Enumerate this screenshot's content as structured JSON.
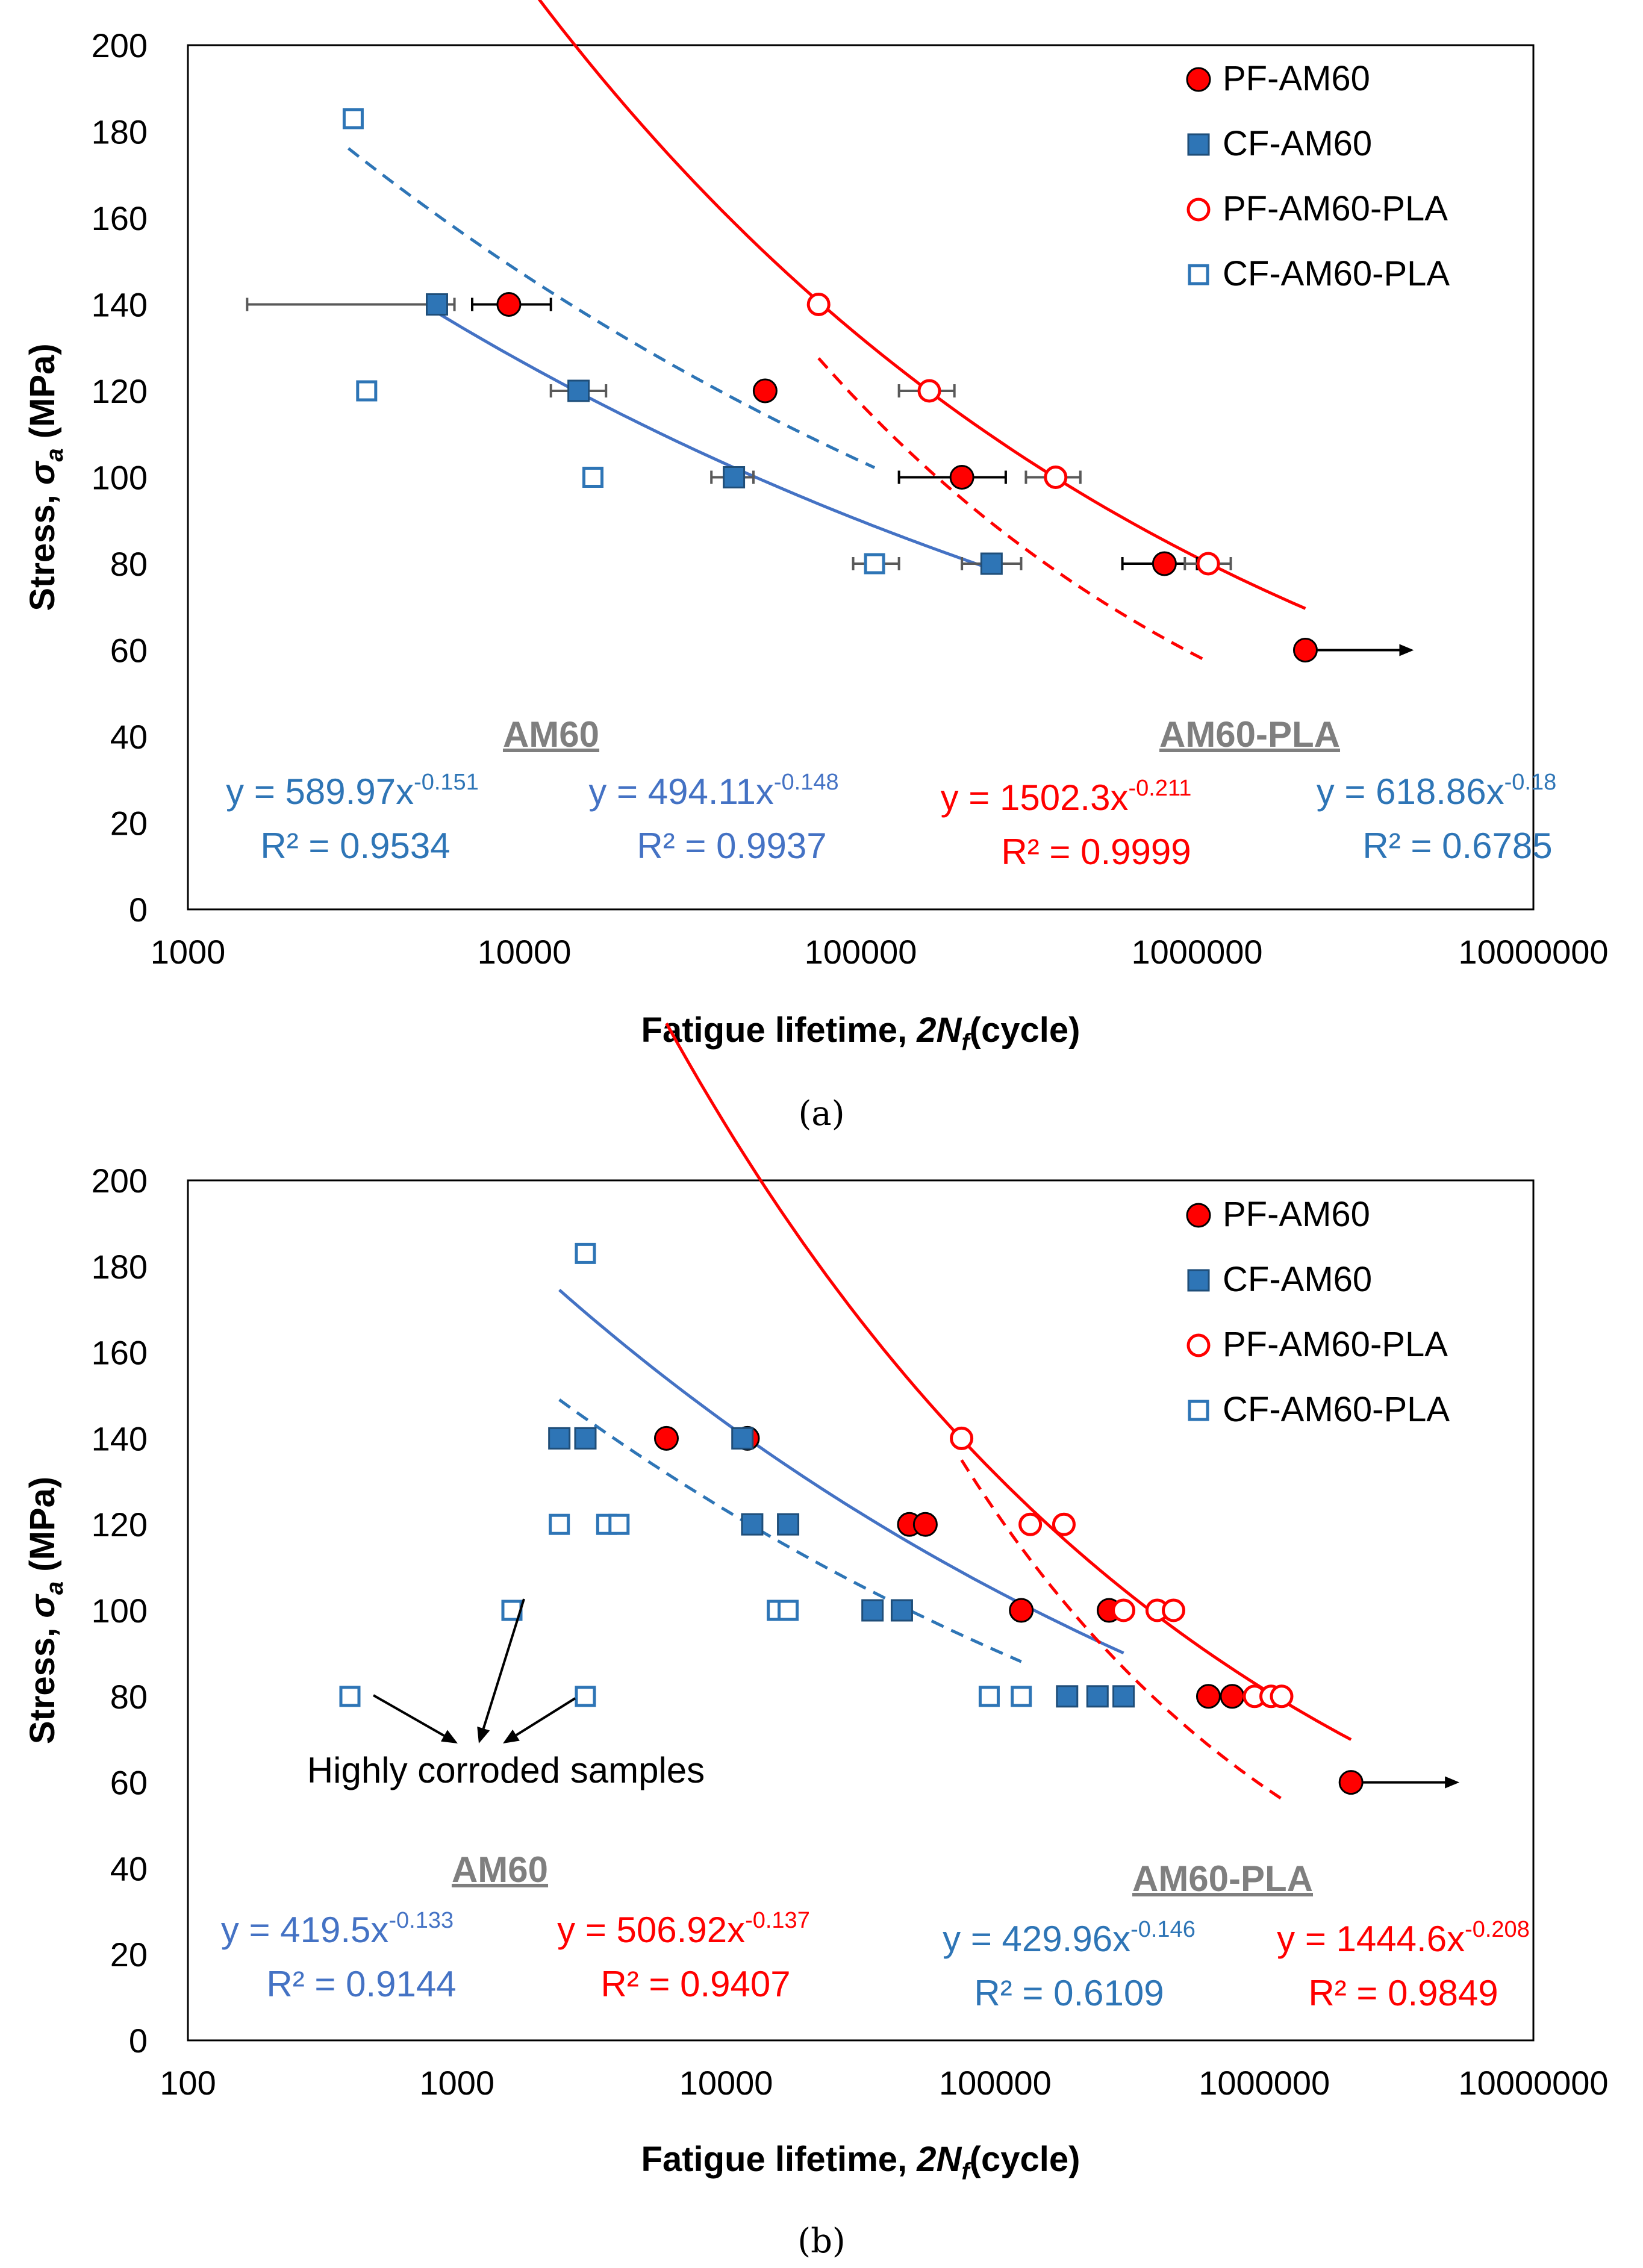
{
  "caption_a": "(a)",
  "caption_b": "(b)",
  "chart_data": [
    {
      "id": "a",
      "type": "scatter",
      "xscale": "log",
      "xlim": [
        1000,
        10000000
      ],
      "ylim": [
        0,
        200
      ],
      "xticks": [
        "1000",
        "10000",
        "100000",
        "1000000",
        "10000000"
      ],
      "yticks": [
        "0",
        "20",
        "40",
        "60",
        "80",
        "100",
        "120",
        "140",
        "160",
        "180",
        "200"
      ],
      "xlabel_main": "Fatigue lifetime, ",
      "xlabel_italic": "2N",
      "xlabel_sub": "f",
      "xlabel_unit": "(cycle)",
      "ylabel_main": "Stress, ",
      "ylabel_italic": "σ",
      "ylabel_sub": "a",
      "ylabel_unit": " (MPa)",
      "legend_position": "top-right",
      "series": [
        {
          "name": "PF-AM60",
          "marker": "circle-filled",
          "color": "#ff0000",
          "points": [
            [
              9000,
              140
            ],
            [
              52000,
              120
            ],
            [
              200000,
              100
            ],
            [
              800000,
              80
            ],
            [
              2100000,
              60
            ]
          ],
          "xerr": [
            [
              7000,
              12000
            ],
            null,
            [
              130000,
              270000
            ],
            [
              600000,
              1000000
            ],
            null
          ],
          "runout": [
            false,
            false,
            false,
            false,
            true
          ]
        },
        {
          "name": "CF-AM60",
          "marker": "square-filled",
          "color": "#2e75b6",
          "points": [
            [
              5500,
              140
            ],
            [
              14500,
              120
            ],
            [
              42000,
              100
            ],
            [
              245000,
              80
            ]
          ],
          "xerr": [
            [
              1500,
              6200
            ],
            [
              12000,
              17500
            ],
            [
              36000,
              48000
            ],
            [
              200000,
              300000
            ]
          ],
          "runout": [
            false,
            false,
            false,
            false
          ]
        },
        {
          "name": "PF-AM60-PLA",
          "marker": "circle-open",
          "color": "#ff0000",
          "points": [
            [
              75000,
              140
            ],
            [
              160000,
              120
            ],
            [
              380000,
              100
            ],
            [
              1080000,
              80
            ]
          ],
          "xerr": [
            null,
            [
              130000,
              190000
            ],
            [
              310000,
              450000
            ],
            [
              920000,
              1260000
            ]
          ],
          "runout": [
            false,
            false,
            false,
            false
          ]
        },
        {
          "name": "CF-AM60-PLA",
          "marker": "square-open",
          "color": "#2e75b6",
          "points": [
            [
              3100,
              183
            ],
            [
              3400,
              120
            ],
            [
              16000,
              100
            ],
            [
              110000,
              80
            ]
          ],
          "xerr": [
            null,
            null,
            null,
            [
              95000,
              130000
            ]
          ],
          "runout": [
            false,
            false,
            false,
            false
          ]
        }
      ],
      "trendlines": [
        {
          "color": "#ff0000",
          "dash": false,
          "a": 1502.3,
          "b": -0.211,
          "x": [
            9000,
            2100000
          ]
        },
        {
          "color": "#4472c4",
          "dash": false,
          "a": 494.11,
          "b": -0.148,
          "x": [
            5500,
            245000
          ]
        },
        {
          "color": "#ff0000",
          "dash": true,
          "a": 3700,
          "b": -0.3,
          "x": [
            75000,
            1080000
          ]
        },
        {
          "color": "#2e75b6",
          "dash": true,
          "a": 589.97,
          "b": -0.151,
          "x": [
            3000,
            110000
          ]
        }
      ],
      "group_labels": [
        "AM60",
        "AM60-PLA"
      ],
      "equations": [
        {
          "y": "y = 589.97x",
          "exp": "-0.151",
          "r2": "R² = 0.9534",
          "color": "#2e75b6"
        },
        {
          "y": "y = 494.11x",
          "exp": "-0.148",
          "r2": "R² = 0.9937",
          "color": "#4472c4"
        },
        {
          "y": "y = 1502.3x",
          "exp": "-0.211",
          "r2": "R² = 0.9999",
          "color": "#ff0000"
        },
        {
          "y": "y = 618.86x",
          "exp": "-0.18",
          "r2": "R² = 0.6785",
          "color": "#2e75b6"
        }
      ]
    },
    {
      "id": "b",
      "type": "scatter",
      "xscale": "log",
      "xlim": [
        100,
        10000000
      ],
      "ylim": [
        0,
        200
      ],
      "xticks": [
        "100",
        "1000",
        "10000",
        "100000",
        "1000000",
        "10000000"
      ],
      "yticks": [
        "0",
        "20",
        "40",
        "60",
        "80",
        "100",
        "120",
        "140",
        "160",
        "180",
        "200"
      ],
      "xlabel_main": "Fatigue lifetime, ",
      "xlabel_italic": "2N",
      "xlabel_sub": "f",
      "xlabel_unit": "(cycle)",
      "ylabel_main": "Stress, ",
      "ylabel_italic": "σ",
      "ylabel_sub": "a",
      "ylabel_unit": " (MPa)",
      "legend_position": "top-right",
      "series": [
        {
          "name": "PF-AM60",
          "marker": "circle-filled",
          "color": "#ff0000",
          "points": [
            [
              6000,
              140
            ],
            [
              12000,
              140
            ],
            [
              48000,
              120
            ],
            [
              55000,
              120
            ],
            [
              125000,
              100
            ],
            [
              265000,
              100
            ],
            [
              620000,
              80
            ],
            [
              760000,
              80
            ],
            [
              2100000,
              60
            ]
          ],
          "runout": [
            false,
            false,
            false,
            false,
            false,
            false,
            false,
            false,
            true
          ]
        },
        {
          "name": "CF-AM60",
          "marker": "square-filled",
          "color": "#2e75b6",
          "points": [
            [
              2400,
              140
            ],
            [
              3000,
              140
            ],
            [
              11500,
              140
            ],
            [
              12500,
              120
            ],
            [
              17000,
              120
            ],
            [
              35000,
              100
            ],
            [
              45000,
              100
            ],
            [
              185000,
              80
            ],
            [
              240000,
              80
            ],
            [
              300000,
              80
            ]
          ],
          "runout": [
            false,
            false,
            false,
            false,
            false,
            false,
            false,
            false,
            false,
            false
          ]
        },
        {
          "name": "PF-AM60-PLA",
          "marker": "circle-open",
          "color": "#ff0000",
          "points": [
            [
              75000,
              140
            ],
            [
              135000,
              120
            ],
            [
              180000,
              120
            ],
            [
              300000,
              100
            ],
            [
              400000,
              100
            ],
            [
              460000,
              100
            ],
            [
              920000,
              80
            ],
            [
              1060000,
              80
            ],
            [
              1160000,
              80
            ]
          ],
          "runout": [
            false,
            false,
            false,
            false,
            false,
            false,
            false,
            false,
            false
          ]
        },
        {
          "name": "CF-AM60-PLA",
          "marker": "square-open",
          "color": "#2e75b6",
          "points": [
            [
              3000,
              183
            ],
            [
              2400,
              120
            ],
            [
              3600,
              120
            ],
            [
              4000,
              120
            ],
            [
              15500,
              100
            ],
            [
              17000,
              100
            ],
            [
              95000,
              80
            ],
            [
              125000,
              80
            ],
            [
              400,
              80
            ],
            [
              1600,
              100
            ],
            [
              3000,
              80
            ]
          ],
          "runout": [
            false,
            false,
            false,
            false,
            false,
            false,
            false,
            false,
            false,
            false,
            false
          ]
        }
      ],
      "trendlines": [
        {
          "color": "#ff0000",
          "dash": false,
          "a": 1444.6,
          "b": -0.208,
          "x": [
            6000,
            2100000
          ]
        },
        {
          "color": "#4472c4",
          "dash": false,
          "a": 506.92,
          "b": -0.137,
          "x": [
            2400,
            300000
          ]
        },
        {
          "color": "#ff0000",
          "dash": true,
          "a": 4900,
          "b": -0.32,
          "x": [
            75000,
            1160000
          ]
        },
        {
          "color": "#2e75b6",
          "dash": true,
          "a": 419.5,
          "b": -0.133,
          "x": [
            2400,
            125000
          ]
        }
      ],
      "annotation": "Highly corroded samples",
      "group_labels": [
        "AM60",
        "AM60-PLA"
      ],
      "equations": [
        {
          "y": "y = 419.5x",
          "exp": "-0.133",
          "r2": "R² = 0.9144",
          "color": "#4472c4"
        },
        {
          "y": "y = 506.92x",
          "exp": "-0.137",
          "r2": "R² = 0.9407",
          "color": "#ff0000"
        },
        {
          "y": "y = 429.96x",
          "exp": "-0.146",
          "r2": "R² = 0.6109",
          "color": "#2e75b6"
        },
        {
          "y": "y = 1444.6x",
          "exp": "-0.208",
          "r2": "R² = 0.9849",
          "color": "#ff0000"
        }
      ]
    }
  ]
}
